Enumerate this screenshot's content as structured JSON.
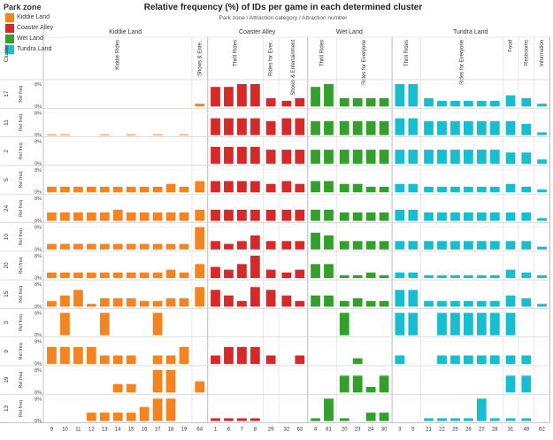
{
  "legend": {
    "title": "Park zone",
    "items": [
      {
        "label": "Kiddie Land",
        "color": "#f28522"
      },
      {
        "label": "Coaster Alley",
        "color": "#d62a2a"
      },
      {
        "label": "Wet Land",
        "color": "#34a02c"
      },
      {
        "label": "Tundra Land",
        "color": "#17becf"
      }
    ]
  },
  "chart_data": {
    "type": "bar",
    "title": "Relative frequency (%) of IDs per game in each determined cluster",
    "subtitle": "Park zone / Attraction category / Attraction number",
    "row_dimension_label": "Cluster",
    "row_axis_label": "Rel freq",
    "y_tick_labels": [
      "8%",
      "0%"
    ],
    "ylim": [
      0,
      8
    ],
    "grid": true,
    "legend_position": "top-left",
    "clusters": [
      "17",
      "11",
      "2",
      "5",
      "24",
      "10",
      "20",
      "15",
      "3",
      "9",
      "19",
      "13"
    ],
    "zones": [
      {
        "name": "Kiddie Land",
        "color": "#f28522",
        "categories": [
          {
            "name": "Kiddie Rides",
            "attractions": [
              "9",
              "10",
              "11",
              "12",
              "13",
              "14",
              "15",
              "16",
              "17",
              "18",
              "19"
            ]
          },
          {
            "name": "Shows & Ente..",
            "attractions": [
              "64"
            ]
          }
        ]
      },
      {
        "name": "Coaster Alley",
        "color": "#d62a2a",
        "categories": [
          {
            "name": "Thrill Rides",
            "attractions": [
              "1",
              "6",
              "7",
              "8"
            ]
          },
          {
            "name": "Rides for Ever..",
            "attractions": [
              "29"
            ]
          },
          {
            "name": "Shows & Entertainment",
            "attractions": [
              "32",
              "63"
            ]
          }
        ]
      },
      {
        "name": "Wet Land",
        "color": "#34a02c",
        "categories": [
          {
            "name": "Thrill Rides",
            "attractions": [
              "4",
              "81"
            ]
          },
          {
            "name": "Rides for Everyone",
            "attractions": [
              "20",
              "23",
              "24",
              "30"
            ]
          }
        ]
      },
      {
        "name": "Tundra Land",
        "color": "#17becf",
        "categories": [
          {
            "name": "Thrill Rides",
            "attractions": [
              "3",
              "5"
            ]
          },
          {
            "name": "Rides for Everyone",
            "attractions": [
              "21",
              "22",
              "25",
              "26",
              "27",
              "28"
            ]
          },
          {
            "name": "Food",
            "attractions": [
              "31"
            ]
          },
          {
            "name": "Restrooms",
            "attractions": [
              "49"
            ]
          },
          {
            "name": "Information",
            "attractions": [
              "62"
            ]
          }
        ]
      }
    ],
    "values": [
      [
        0,
        0,
        0,
        0,
        0,
        0,
        0,
        0,
        0,
        0,
        0,
        1,
        7,
        7,
        8,
        8,
        3,
        2,
        3,
        7,
        8,
        3,
        3,
        3,
        3,
        8,
        8,
        3,
        2,
        2,
        2,
        2,
        2,
        4,
        3,
        1
      ],
      [
        0.3,
        0.3,
        0,
        0,
        0.3,
        0,
        0.3,
        0,
        0.3,
        0,
        0.3,
        0,
        6,
        6,
        6,
        6,
        5,
        6,
        6,
        5,
        5,
        5,
        5,
        5,
        5,
        6,
        6,
        5,
        5,
        5,
        5,
        5,
        5,
        5,
        4,
        1
      ],
      [
        0,
        0,
        0,
        0,
        0,
        0,
        0,
        0,
        0,
        0,
        0,
        0,
        6,
        6,
        6,
        6,
        5,
        5,
        5,
        5,
        5,
        5,
        5,
        5,
        5,
        5,
        5,
        5,
        5,
        5,
        5,
        5,
        5,
        4,
        4,
        1.5
      ],
      [
        2,
        2,
        2,
        2,
        2,
        2,
        2,
        2,
        2,
        3,
        2,
        4,
        4,
        4,
        4,
        4,
        3,
        4,
        3,
        4,
        4,
        3,
        3,
        2,
        2,
        3,
        3,
        2,
        2,
        2,
        2,
        2,
        2,
        3,
        2,
        1
      ],
      [
        3,
        3,
        3,
        3,
        3,
        4,
        3,
        3,
        3,
        3,
        3,
        4,
        4,
        4,
        4,
        4,
        4,
        4,
        4,
        4,
        4,
        3,
        3,
        3,
        3,
        4,
        4,
        3,
        3,
        3,
        3,
        3,
        3,
        3,
        3,
        1
      ],
      [
        2,
        2,
        2,
        2,
        2,
        2,
        2,
        2,
        2,
        2,
        2,
        8,
        3,
        2,
        3,
        5,
        3,
        3,
        3,
        6,
        5,
        3,
        3,
        3,
        3,
        3,
        3,
        3,
        3,
        3,
        3,
        3,
        3,
        3,
        3,
        1
      ],
      [
        2,
        2,
        2,
        2,
        2,
        2,
        2,
        2,
        2,
        3,
        2,
        5,
        4,
        3,
        5,
        8,
        3,
        2,
        3,
        5,
        5,
        1,
        1,
        2,
        1,
        2,
        2,
        1,
        1,
        1,
        1,
        1,
        1,
        3,
        2,
        1
      ],
      [
        2,
        4,
        6,
        1,
        3,
        3,
        3,
        2,
        2,
        3,
        3,
        7,
        6,
        4,
        2,
        7,
        6,
        4,
        2,
        4,
        4,
        2,
        3,
        2,
        2,
        6,
        6,
        2,
        2,
        2,
        2,
        2,
        2,
        4,
        3,
        1
      ],
      [
        0,
        8,
        0,
        0,
        8,
        0,
        0,
        0,
        8,
        0,
        0,
        0,
        0,
        0,
        0,
        0,
        0,
        0,
        0,
        0,
        0,
        8,
        0,
        0,
        0,
        8,
        8,
        0,
        8,
        8,
        8,
        8,
        8,
        8,
        0,
        0
      ],
      [
        6,
        6,
        6,
        6,
        3,
        3,
        3,
        0,
        3,
        3,
        6,
        0,
        3,
        6,
        6,
        6,
        3,
        0,
        3,
        0,
        0,
        0,
        2,
        0,
        0,
        3,
        0,
        0,
        3,
        3,
        3,
        3,
        3,
        3,
        3,
        0
      ],
      [
        0,
        0,
        0,
        0,
        0,
        3,
        3,
        0,
        8,
        8,
        0,
        4,
        0,
        0,
        0,
        0,
        0,
        0,
        0,
        0,
        0,
        6,
        6,
        2,
        6,
        0,
        0,
        0,
        0,
        0,
        0,
        0,
        0,
        6,
        6,
        0
      ],
      [
        0,
        0,
        0,
        3,
        3,
        3,
        3,
        5,
        8,
        8,
        0,
        0,
        1,
        1,
        1,
        1,
        0,
        0,
        0,
        1,
        8,
        1,
        0,
        3,
        3,
        0,
        0,
        1,
        1,
        1,
        1,
        8,
        1,
        1,
        1,
        0
      ]
    ]
  }
}
